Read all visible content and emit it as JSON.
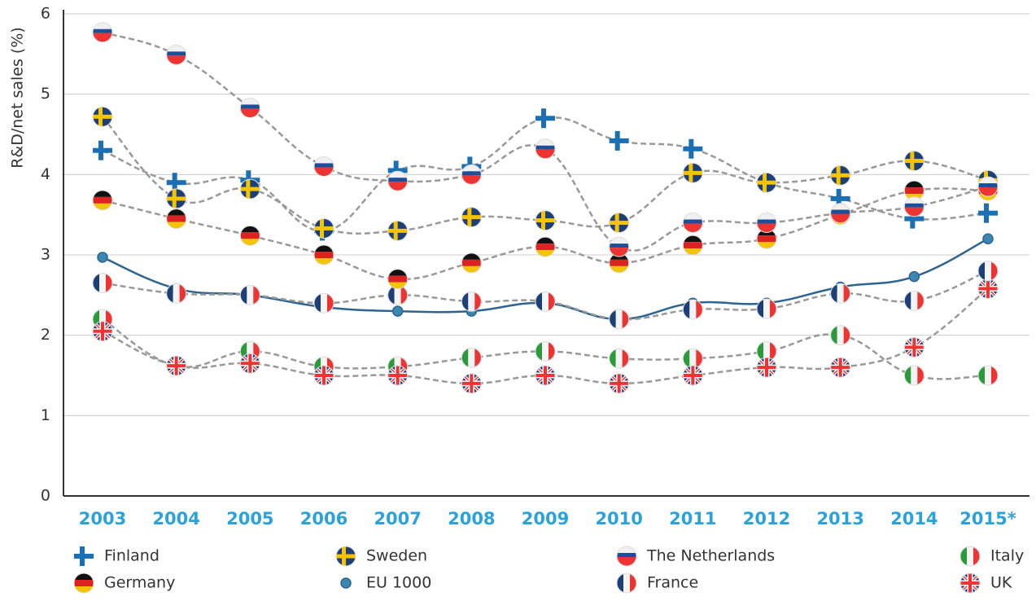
{
  "chart_data": {
    "type": "line",
    "y_label": "R&D/net sales (%)",
    "categories": [
      "2003",
      "2004",
      "2005",
      "2006",
      "2007",
      "2008",
      "2009",
      "2010",
      "2011",
      "2012",
      "2013",
      "2014",
      "2015*"
    ],
    "ylim": [
      0,
      6
    ],
    "yticks": [
      0,
      1,
      2,
      3,
      4,
      5,
      6
    ],
    "grid": true,
    "series": [
      {
        "name": "Finland",
        "color": "#1a6fb5",
        "values": [
          4.3,
          3.9,
          3.93,
          3.3,
          4.05,
          4.1,
          4.7,
          4.42,
          4.32,
          3.9,
          3.7,
          3.45,
          3.52
        ]
      },
      {
        "name": "Germany",
        "color": "#999999",
        "values": [
          3.68,
          3.45,
          3.24,
          3.0,
          2.7,
          2.9,
          3.1,
          2.9,
          3.12,
          3.2,
          3.5,
          3.8,
          3.8
        ]
      },
      {
        "name": "Sweden",
        "color": "#999999",
        "values": [
          4.72,
          3.7,
          3.82,
          3.33,
          3.3,
          3.47,
          3.43,
          3.4,
          4.02,
          3.9,
          3.99,
          4.17,
          3.93
        ]
      },
      {
        "name": "EU 1000",
        "color": "#2e6490",
        "values": [
          2.97,
          2.58,
          2.5,
          2.35,
          2.3,
          2.3,
          2.4,
          2.2,
          2.4,
          2.4,
          2.6,
          2.73,
          3.2
        ]
      },
      {
        "name": "The Netherlands",
        "color": "#999999",
        "values": [
          5.77,
          5.49,
          4.83,
          4.1,
          3.92,
          4.0,
          4.32,
          3.1,
          3.4,
          3.4,
          3.52,
          3.6,
          3.85
        ]
      },
      {
        "name": "France",
        "color": "#999999",
        "values": [
          2.65,
          2.52,
          2.5,
          2.4,
          2.5,
          2.42,
          2.42,
          2.2,
          2.32,
          2.33,
          2.52,
          2.43,
          2.8
        ]
      },
      {
        "name": "Italy",
        "color": "#999999",
        "values": [
          2.2,
          1.62,
          1.8,
          1.61,
          1.61,
          1.72,
          1.8,
          1.71,
          1.71,
          1.8,
          2.0,
          1.5,
          1.5
        ]
      },
      {
        "name": "UK",
        "color": "#999999",
        "values": [
          2.05,
          1.62,
          1.65,
          1.5,
          1.5,
          1.4,
          1.5,
          1.4,
          1.5,
          1.6,
          1.6,
          1.85,
          2.58
        ]
      }
    ]
  }
}
